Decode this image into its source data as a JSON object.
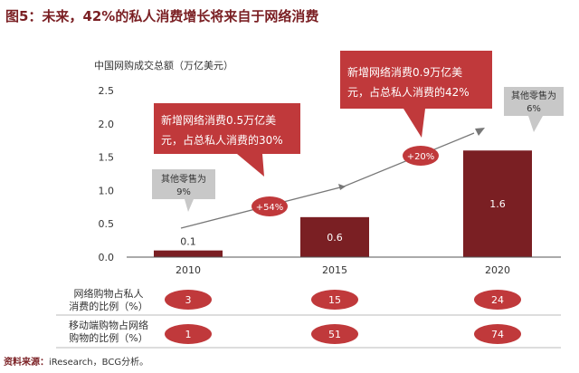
{
  "title": "图5：未来，42%的私人消费增长将来自于网络消费",
  "unit_label": "中国网购成交总额（万亿美元）",
  "source": {
    "label": "资料来源：",
    "text": "iResearch，BCG分析。"
  },
  "callouts": {
    "c2015_line1": "新增网络消费0.5万亿美",
    "c2015_line2": "元，占总私人消费的30%",
    "c2020_line1": "新增网络消费0.9万亿美",
    "c2020_line2": "元，占总私人消费的42%",
    "growth1": "+54%",
    "growth2": "+20%",
    "other2010_line1": "其他零售为",
    "other2010_line2": "9%",
    "other2020_line1": "其他零售为",
    "other2020_line2": "6%"
  },
  "table": {
    "row1_label_line1": "网络购物占私人",
    "row1_label_line2": "消费的比例（%）",
    "row1_values": [
      "3",
      "15",
      "24"
    ],
    "row2_label_line1": "移动端购物占网络",
    "row2_label_line2": "购物的比例（%）",
    "row2_values": [
      "1",
      "51",
      "74"
    ]
  },
  "colors": {
    "bar": "#7a1f23",
    "callout": "#c0393b",
    "grey": "#c8c8c8",
    "title": "#7a1f23"
  },
  "chart_data": {
    "type": "bar",
    "categories": [
      "2010",
      "2015",
      "2020"
    ],
    "values": [
      0.1,
      0.6,
      1.6
    ],
    "data_labels": [
      "0.1",
      "0.6",
      "1.6"
    ],
    "ylabel": "中国网购成交总额（万亿美元）",
    "ylim": [
      0,
      2.5
    ],
    "yticks": [
      "0.0",
      "0.5",
      "1.0",
      "1.5",
      "2.0",
      "2.5"
    ],
    "grid": false,
    "legend": "none"
  }
}
